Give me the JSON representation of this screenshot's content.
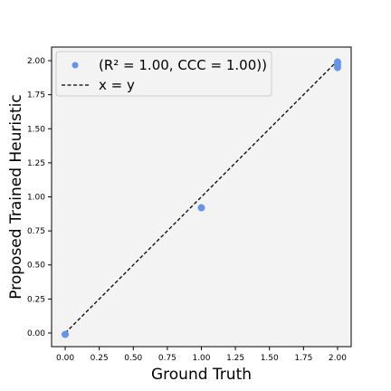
{
  "chart_data": {
    "type": "scatter",
    "xlabel": "Ground Truth",
    "ylabel": "Proposed Trained Heuristic",
    "xlim": [
      -0.1,
      2.1
    ],
    "ylim": [
      -0.1,
      2.1
    ],
    "x_ticks": [
      "0.00",
      "0.25",
      "0.50",
      "0.75",
      "1.00",
      "1.25",
      "1.50",
      "1.75",
      "2.00"
    ],
    "y_ticks": [
      "0.00",
      "0.25",
      "0.50",
      "0.75",
      "1.00",
      "1.25",
      "1.50",
      "1.75",
      "2.00"
    ],
    "background": "#f3f3f3",
    "legend_position": "top-left",
    "series": [
      {
        "name": "(R² = 1.00, CCC = 1.00))",
        "kind": "scatter",
        "color": "#6495ed",
        "points": [
          {
            "x": 0.0,
            "y": -0.01
          },
          {
            "x": 1.0,
            "y": 0.92
          },
          {
            "x": 2.0,
            "y": 1.99
          },
          {
            "x": 2.0,
            "y": 1.97
          },
          {
            "x": 2.0,
            "y": 1.95
          }
        ]
      },
      {
        "name": "x = y",
        "kind": "line",
        "style": "dashed",
        "color": "#000000",
        "points": [
          {
            "x": 0.0,
            "y": 0.0
          },
          {
            "x": 2.0,
            "y": 2.0
          }
        ]
      }
    ]
  }
}
